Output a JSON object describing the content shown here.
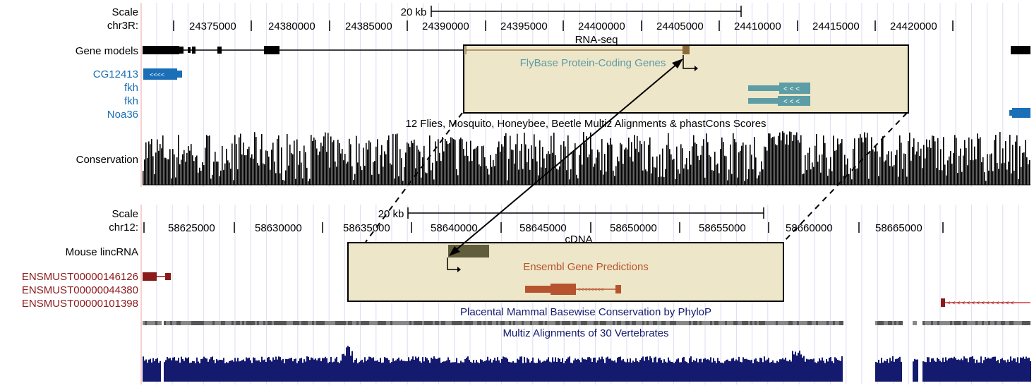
{
  "colors": {
    "black": "#000000",
    "blue_gene": "#1b6fb6",
    "teal_fly": "#5c9da6",
    "navy": "#141a6e",
    "dark_red": "#8b1a1a",
    "orange_red": "#b5542e",
    "box_fill": "#eee6c8",
    "olive": "#5f5d3c",
    "fly_brown": "#8c6a3a",
    "red_line": "#d43a3a",
    "grid": "#dcdcf0"
  },
  "top_panel": {
    "scale_label": "Scale",
    "chr_label": "chr3R:",
    "scale_bar_text": "20 kb",
    "positions": [
      "24375000",
      "24380000",
      "24385000",
      "24390000",
      "24395000",
      "24400000",
      "24405000",
      "24410000",
      "24415000",
      "24420000"
    ],
    "gene_models_label": "Gene models",
    "genes": [
      "CG12413",
      "fkh",
      "fkh",
      "Noa36"
    ],
    "rna_seq_label": "RNA-seq",
    "inset_title": "FlyBase Protein-Coding Genes",
    "conservation_header": "12 Flies, Mosquito, Honeybee, Beetle Multiz Alignments & phastCons Scores",
    "conservation_label": "Conservation"
  },
  "bottom_panel": {
    "scale_label": "Scale",
    "chr_label": "chr12:",
    "scale_bar_text": "20 kb",
    "positions": [
      "58625000",
      "58630000",
      "58635000",
      "58640000",
      "58645000",
      "58650000",
      "58655000",
      "58660000",
      "58665000"
    ],
    "lincrna_label": "Mouse lincRNA",
    "transcripts": [
      "ENSMUST00000146126",
      "ENSMUST00000044380",
      "ENSMUST00000101398"
    ],
    "cdna_label": "cDNA",
    "inset_title": "Ensembl Gene Predictions",
    "phylop_label": "Placental Mammal Basewise Conservation by PhyloP",
    "multiz_label": "Multiz Alignments of 30 Vertebrates"
  }
}
